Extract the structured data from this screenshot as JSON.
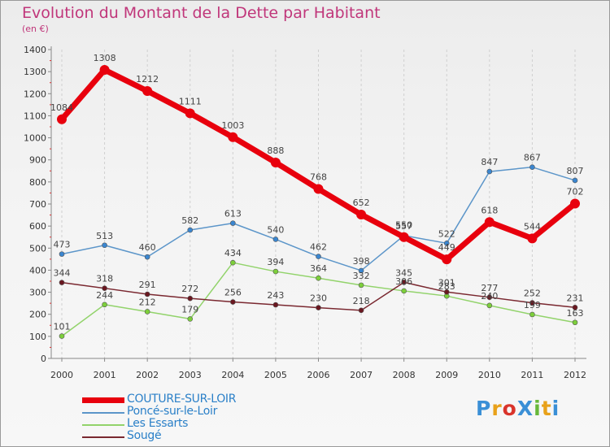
{
  "title": "Evolution du Montant de la Dette par Habitant",
  "unit_label": "(en €)",
  "logo_text": "ProXiti",
  "chart_data": {
    "type": "line",
    "x": [
      "2000",
      "2001",
      "2002",
      "2003",
      "2004",
      "2005",
      "2006",
      "2007",
      "2008",
      "2009",
      "2010",
      "2011",
      "2012"
    ],
    "ylim": [
      0,
      1400
    ],
    "yticks": [
      0,
      100,
      200,
      300,
      400,
      500,
      600,
      700,
      800,
      900,
      1000,
      1100,
      1200,
      1300,
      1400
    ],
    "grid": "vertical dashed",
    "legend_position": "bottom-left",
    "series": [
      {
        "name": "COUTURE-SUR-LOIR",
        "color": "#e8000d",
        "marker_color": "#e8000d",
        "emphasis": true,
        "values": [
          1084,
          1308,
          1212,
          1111,
          1003,
          888,
          768,
          652,
          550,
          449,
          618,
          544,
          702
        ],
        "labels": [
          "1084",
          "1308",
          "1212",
          "1111",
          "1003",
          "888",
          "768",
          "652",
          "550",
          "449",
          "618",
          "544",
          "702"
        ]
      },
      {
        "name": "Poncé-sur-le-Loir",
        "color": "#5b95c9",
        "marker_color": "#3a86d0",
        "emphasis": false,
        "values": [
          473,
          513,
          460,
          582,
          613,
          540,
          462,
          398,
          557,
          522,
          847,
          867,
          807
        ],
        "labels": [
          "473",
          "513",
          "460",
          "582",
          "613",
          "540",
          "462",
          "398",
          "557",
          "522",
          "847",
          "867",
          "807"
        ]
      },
      {
        "name": "Les Essarts",
        "color": "#92d36b",
        "marker_color": "#7ccf3a",
        "emphasis": false,
        "values": [
          101,
          244,
          212,
          179,
          434,
          394,
          364,
          332,
          306,
          283,
          240,
          199,
          163
        ],
        "labels": [
          "101",
          "244",
          "212",
          "179",
          "434",
          "394",
          "364",
          "332",
          "306",
          "283",
          "240",
          "199",
          "163"
        ]
      },
      {
        "name": "Sougé",
        "color": "#7a2830",
        "marker_color": "#6a1720",
        "emphasis": false,
        "values": [
          344,
          318,
          291,
          272,
          256,
          243,
          230,
          218,
          345,
          301,
          277,
          252,
          231
        ],
        "labels": [
          "344",
          "318",
          "291",
          "272",
          "256",
          "243",
          "230",
          "218",
          "345",
          "301",
          "277",
          "252",
          "231"
        ]
      }
    ]
  }
}
